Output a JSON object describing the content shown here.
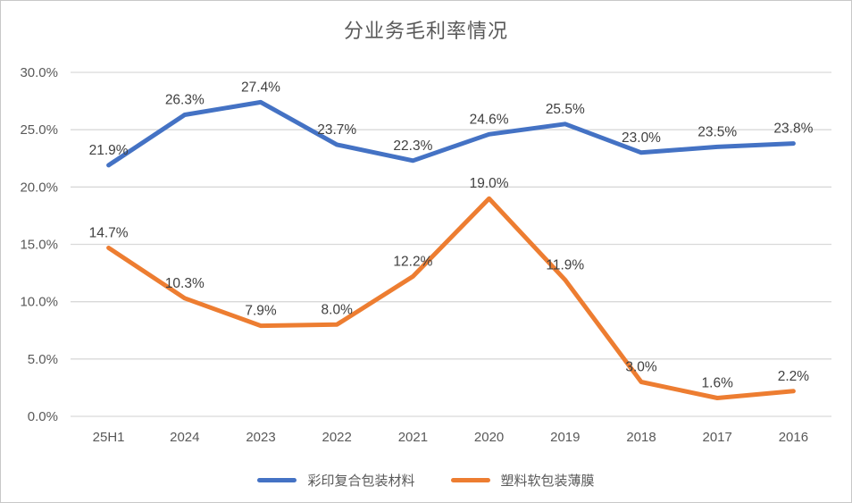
{
  "chart_data": {
    "type": "line",
    "title": "分业务毛利率情况",
    "categories": [
      "25H1",
      "2024",
      "2023",
      "2022",
      "2021",
      "2020",
      "2019",
      "2018",
      "2017",
      "2016"
    ],
    "series": [
      {
        "name": "彩印复合包装材料",
        "color": "#4472C4",
        "values": [
          21.9,
          26.3,
          27.4,
          23.7,
          22.3,
          24.6,
          25.5,
          23.0,
          23.5,
          23.8
        ]
      },
      {
        "name": "塑料软包装薄膜",
        "color": "#ED7D31",
        "values": [
          14.7,
          10.3,
          7.9,
          8.0,
          12.2,
          19.0,
          11.9,
          3.0,
          1.6,
          2.2
        ]
      }
    ],
    "data_labels": [
      [
        "21.9%",
        "26.3%",
        "27.4%",
        "23.7%",
        "22.3%",
        "24.6%",
        "25.5%",
        "23.0%",
        "23.5%",
        "23.8%"
      ],
      [
        "14.7%",
        "10.3%",
        "7.9%",
        "8.0%",
        "12.2%",
        "19.0%",
        "11.9%",
        "3.0%",
        "1.6%",
        "2.2%"
      ]
    ],
    "ylabel": "",
    "xlabel": "",
    "ylim": [
      0,
      30
    ],
    "y_tick_step": 5,
    "y_tick_labels": [
      "0.0%",
      "5.0%",
      "10.0%",
      "15.0%",
      "20.0%",
      "25.0%",
      "30.0%"
    ],
    "grid": "horizontal",
    "legend_position": "bottom",
    "colors": {
      "gridline": "#D9D9D9",
      "axis_text": "#595959",
      "data_label_text": "#404040",
      "title_text": "#595959",
      "background": "#FFFFFF"
    }
  }
}
